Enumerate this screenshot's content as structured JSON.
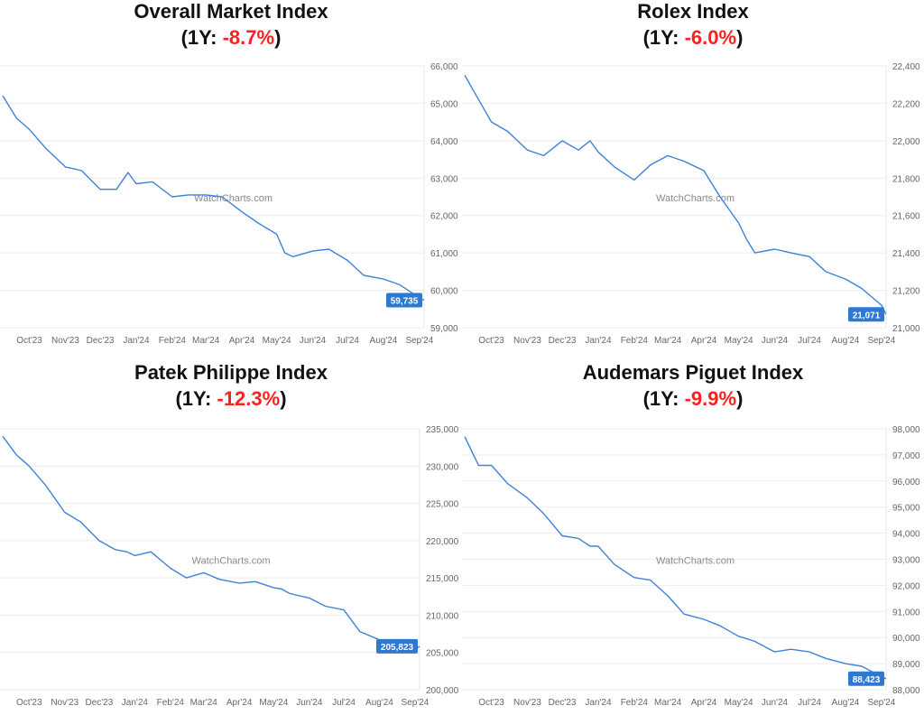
{
  "watermark": "WatchCharts.com",
  "colors": {
    "line": "#3d82d9",
    "badge": "#2f78d2",
    "negative": "#ff1f1f",
    "grid": "#ececec",
    "tick_text": "#666666"
  },
  "chart_data": [
    {
      "type": "line",
      "title": "Overall Market Index",
      "subtitle_prefix": "(1Y: ",
      "subtitle_value": "-8.7%",
      "subtitle_suffix": ")",
      "ylim": [
        59000,
        66000
      ],
      "yticks": [
        "59,000",
        "60,000",
        "61,000",
        "62,000",
        "63,000",
        "64,000",
        "65,000",
        "66,000"
      ],
      "ytick_values": [
        59000,
        60000,
        61000,
        62000,
        63000,
        64000,
        65000,
        66000
      ],
      "xticks": [
        "Oct'23",
        "Nov'23",
        "Dec'23",
        "Jan'24",
        "Feb'24",
        "Mar'24",
        "Apr'24",
        "May'24",
        "Jun'24",
        "Jul'24",
        "Aug'24",
        "Sep'24"
      ],
      "xtick_dates": [
        "2023-10-01",
        "2023-11-01",
        "2023-12-01",
        "2024-01-01",
        "2024-02-01",
        "2024-03-01",
        "2024-04-01",
        "2024-05-01",
        "2024-06-01",
        "2024-07-01",
        "2024-08-01",
        "2024-09-01"
      ],
      "y_axis": "right",
      "grid": true,
      "current_label": "59,735",
      "x": [
        "2023-09-08",
        "2023-09-20",
        "2023-10-01",
        "2023-10-15",
        "2023-11-01",
        "2023-11-15",
        "2023-12-01",
        "2023-12-15",
        "2023-12-25",
        "2024-01-01",
        "2024-01-15",
        "2024-02-01",
        "2024-02-15",
        "2024-03-01",
        "2024-03-15",
        "2024-04-01",
        "2024-04-15",
        "2024-05-01",
        "2024-05-08",
        "2024-05-15",
        "2024-06-01",
        "2024-06-15",
        "2024-07-01",
        "2024-07-15",
        "2024-08-01",
        "2024-08-15",
        "2024-09-01",
        "2024-09-05"
      ],
      "values": [
        65200,
        64600,
        64300,
        63800,
        63300,
        63200,
        62700,
        62700,
        63150,
        62850,
        62900,
        62500,
        62550,
        62550,
        62500,
        62100,
        61800,
        61500,
        61000,
        60900,
        61050,
        61100,
        60800,
        60400,
        60300,
        60150,
        59800,
        59735
      ]
    },
    {
      "type": "line",
      "title": "Rolex Index",
      "subtitle_prefix": "(1Y: ",
      "subtitle_value": "-6.0%",
      "subtitle_suffix": ")",
      "ylim": [
        21000,
        22400
      ],
      "yticks": [
        "21,000",
        "21,200",
        "21,400",
        "21,600",
        "21,800",
        "22,000",
        "22,200",
        "22,400"
      ],
      "ytick_values": [
        21000,
        21200,
        21400,
        21600,
        21800,
        22000,
        22200,
        22400
      ],
      "xticks": [
        "Oct'23",
        "Nov'23",
        "Dec'23",
        "Jan'24",
        "Feb'24",
        "Mar'24",
        "Apr'24",
        "May'24",
        "Jun'24",
        "Jul'24",
        "Aug'24",
        "Sep'24"
      ],
      "xtick_dates": [
        "2023-10-01",
        "2023-11-01",
        "2023-12-01",
        "2024-01-01",
        "2024-02-01",
        "2024-03-01",
        "2024-04-01",
        "2024-05-01",
        "2024-06-01",
        "2024-07-01",
        "2024-08-01",
        "2024-09-01"
      ],
      "y_axis": "right",
      "grid": true,
      "current_label": "21,071",
      "x": [
        "2023-09-08",
        "2023-09-20",
        "2023-10-01",
        "2023-10-15",
        "2023-11-01",
        "2023-11-15",
        "2023-12-01",
        "2023-12-15",
        "2023-12-25",
        "2024-01-01",
        "2024-01-15",
        "2024-02-01",
        "2024-02-15",
        "2024-03-01",
        "2024-03-15",
        "2024-04-01",
        "2024-04-15",
        "2024-05-01",
        "2024-05-08",
        "2024-05-15",
        "2024-06-01",
        "2024-06-15",
        "2024-07-01",
        "2024-07-15",
        "2024-08-01",
        "2024-08-15",
        "2024-09-01",
        "2024-09-05"
      ],
      "values": [
        22350,
        22220,
        22100,
        22050,
        21950,
        21920,
        22000,
        21950,
        22000,
        21940,
        21860,
        21790,
        21870,
        21920,
        21890,
        21840,
        21700,
        21560,
        21470,
        21400,
        21420,
        21400,
        21380,
        21300,
        21260,
        21210,
        21120,
        21071
      ]
    },
    {
      "type": "line",
      "title": "Patek Philippe Index",
      "subtitle_prefix": "(1Y: ",
      "subtitle_value": "-12.3%",
      "subtitle_suffix": ")",
      "ylim": [
        200000,
        235000
      ],
      "yticks": [
        "200,000",
        "205,000",
        "210,000",
        "215,000",
        "220,000",
        "225,000",
        "230,000",
        "235,000"
      ],
      "ytick_values": [
        200000,
        205000,
        210000,
        215000,
        220000,
        225000,
        230000,
        235000
      ],
      "xticks": [
        "Oct'23",
        "Nov'23",
        "Dec'23",
        "Jan'24",
        "Feb'24",
        "Mar'24",
        "Apr'24",
        "May'24",
        "Jun'24",
        "Jul'24",
        "Aug'24",
        "Sep'24"
      ],
      "xtick_dates": [
        "2023-10-01",
        "2023-11-01",
        "2023-12-01",
        "2024-01-01",
        "2024-02-01",
        "2024-03-01",
        "2024-04-01",
        "2024-05-01",
        "2024-06-01",
        "2024-07-01",
        "2024-08-01",
        "2024-09-01"
      ],
      "y_axis": "right",
      "grid": true,
      "current_label": "205,823",
      "x": [
        "2023-09-08",
        "2023-09-20",
        "2023-10-01",
        "2023-10-15",
        "2023-11-01",
        "2023-11-15",
        "2023-12-01",
        "2023-12-15",
        "2023-12-25",
        "2024-01-01",
        "2024-01-15",
        "2024-02-01",
        "2024-02-15",
        "2024-03-01",
        "2024-03-15",
        "2024-04-01",
        "2024-04-15",
        "2024-05-01",
        "2024-05-08",
        "2024-05-15",
        "2024-06-01",
        "2024-06-15",
        "2024-07-01",
        "2024-07-15",
        "2024-08-01",
        "2024-08-15",
        "2024-09-01",
        "2024-09-05"
      ],
      "values": [
        234000,
        231500,
        230000,
        227500,
        223800,
        222500,
        220000,
        218800,
        218500,
        218000,
        218500,
        216300,
        215000,
        215700,
        214800,
        214300,
        214500,
        213700,
        213500,
        212900,
        212300,
        211200,
        210700,
        207800,
        206700,
        205500,
        205400,
        205823
      ]
    },
    {
      "type": "line",
      "title": "Audemars Piguet Index",
      "subtitle_prefix": "(1Y: ",
      "subtitle_value": "-9.9%",
      "subtitle_suffix": ")",
      "ylim": [
        88000,
        98000
      ],
      "yticks": [
        "88,000",
        "89,000",
        "90,000",
        "91,000",
        "92,000",
        "93,000",
        "94,000",
        "95,000",
        "96,000",
        "97,000",
        "98,000"
      ],
      "ytick_values": [
        88000,
        89000,
        90000,
        91000,
        92000,
        93000,
        94000,
        95000,
        96000,
        97000,
        98000
      ],
      "xticks": [
        "Oct'23",
        "Nov'23",
        "Dec'23",
        "Jan'24",
        "Feb'24",
        "Mar'24",
        "Apr'24",
        "May'24",
        "Jun'24",
        "Jul'24",
        "Aug'24",
        "Sep'24"
      ],
      "xtick_dates": [
        "2023-10-01",
        "2023-11-01",
        "2023-12-01",
        "2024-01-01",
        "2024-02-01",
        "2024-03-01",
        "2024-04-01",
        "2024-05-01",
        "2024-06-01",
        "2024-07-01",
        "2024-08-01",
        "2024-09-01"
      ],
      "y_axis": "right",
      "grid": true,
      "current_label": "88,423",
      "x": [
        "2023-09-08",
        "2023-09-20",
        "2023-10-01",
        "2023-10-15",
        "2023-11-01",
        "2023-11-15",
        "2023-12-01",
        "2023-12-15",
        "2023-12-25",
        "2024-01-01",
        "2024-01-15",
        "2024-02-01",
        "2024-02-15",
        "2024-03-01",
        "2024-03-15",
        "2024-04-01",
        "2024-04-15",
        "2024-05-01",
        "2024-05-08",
        "2024-05-15",
        "2024-06-01",
        "2024-06-15",
        "2024-07-01",
        "2024-07-15",
        "2024-08-01",
        "2024-08-15",
        "2024-09-01",
        "2024-09-05"
      ],
      "values": [
        97700,
        96600,
        96600,
        95900,
        95350,
        94750,
        93900,
        93800,
        93500,
        93500,
        92800,
        92300,
        92200,
        91600,
        90900,
        90700,
        90450,
        90050,
        89950,
        89850,
        89450,
        89550,
        89450,
        89200,
        89000,
        88900,
        88500,
        88423
      ]
    }
  ]
}
